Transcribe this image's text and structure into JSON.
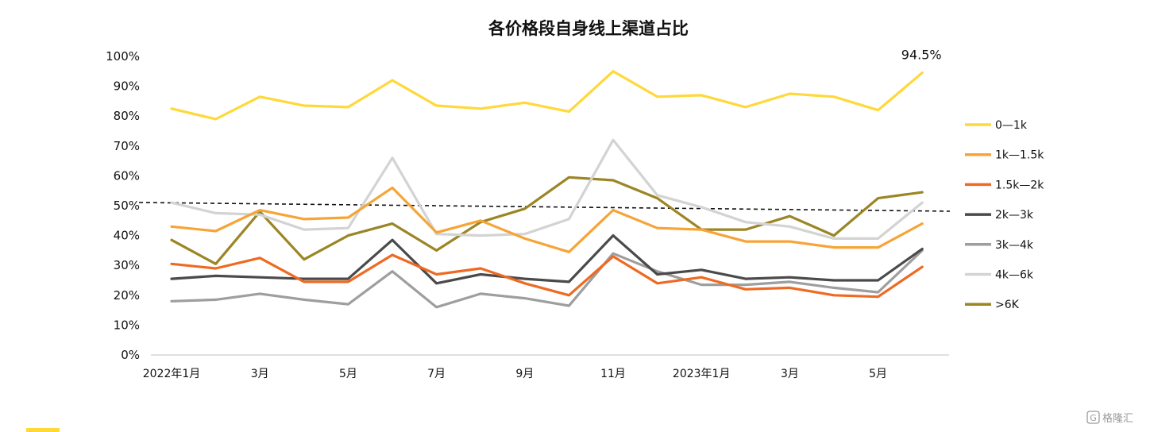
{
  "chart_data": {
    "type": "line",
    "title": "各价格段自身线上渠道占比",
    "ylim": [
      0,
      100
    ],
    "y_ticks": [
      "0%",
      "10%",
      "20%",
      "30%",
      "40%",
      "50%",
      "60%",
      "70%",
      "80%",
      "90%",
      "100%"
    ],
    "x": [
      "2022-01",
      "2022-02",
      "2022-03",
      "2022-04",
      "2022-05",
      "2022-06",
      "2022-07",
      "2022-08",
      "2022-09",
      "2022-10",
      "2022-11",
      "2022-12",
      "2023-01",
      "2023-02",
      "2023-03",
      "2023-04",
      "2023-05",
      "2023-06"
    ],
    "x_tick_labels": [
      "2022年1月",
      "",
      "3月",
      "",
      "5月",
      "",
      "7月",
      "",
      "9月",
      "",
      "11月",
      "",
      "2023年1月",
      "",
      "3月",
      "",
      "5月",
      ""
    ],
    "reference_line": {
      "value": 50,
      "style": "dashed"
    },
    "annotation": {
      "text": "94.5%",
      "series": "0—1k",
      "index": 17
    },
    "legend_position": "right",
    "series": [
      {
        "name": "0—1k",
        "color": "#FFD83A",
        "values": [
          82.5,
          79,
          86.5,
          83.5,
          83,
          92,
          83.5,
          82.5,
          84.5,
          81.5,
          95,
          86.5,
          87,
          83,
          87.5,
          86.5,
          82,
          94.5
        ]
      },
      {
        "name": "1k—1.5k",
        "color": "#F7A437",
        "values": [
          43,
          41.5,
          48.5,
          45.5,
          46,
          56,
          41,
          45,
          39,
          34.5,
          48.5,
          42.5,
          42,
          38,
          38,
          36,
          36,
          44
        ]
      },
      {
        "name": "1.5k—2k",
        "color": "#EE6A22",
        "values": [
          30.5,
          29,
          32.5,
          24.5,
          24.5,
          33.5,
          27,
          29,
          24,
          20,
          33,
          24,
          26,
          22,
          22.5,
          20,
          19.5,
          29.5
        ]
      },
      {
        "name": "2k—3k",
        "color": "#4A4A4A",
        "values": [
          25.5,
          26.5,
          26,
          25.5,
          25.5,
          38.5,
          24,
          27,
          25.5,
          24.5,
          40,
          27,
          28.5,
          25.5,
          26,
          25,
          25,
          35.5
        ]
      },
      {
        "name": "3k—4k",
        "color": "#9E9E9E",
        "values": [
          18,
          18.5,
          20.5,
          18.5,
          17,
          28,
          16,
          20.5,
          19,
          16.5,
          34,
          28,
          23.5,
          23.5,
          24.5,
          22.5,
          21,
          35
        ]
      },
      {
        "name": "4k—6k",
        "color": "#D3D3D3",
        "values": [
          51,
          47.5,
          47,
          42,
          42.5,
          66,
          40.5,
          40,
          40.5,
          45.5,
          72,
          53.5,
          49.5,
          44.5,
          43,
          39,
          39,
          51
        ]
      },
      {
        "name": ">6K",
        "color": "#9B8525",
        "values": [
          38.5,
          30.5,
          48,
          32,
          40,
          44,
          35,
          44.5,
          49,
          59.5,
          58.5,
          52.5,
          42,
          42,
          46.5,
          40,
          52.5,
          54.5
        ]
      }
    ]
  },
  "footer": {
    "accent_color": "#FFD83A",
    "watermark_text": "格隆汇"
  }
}
